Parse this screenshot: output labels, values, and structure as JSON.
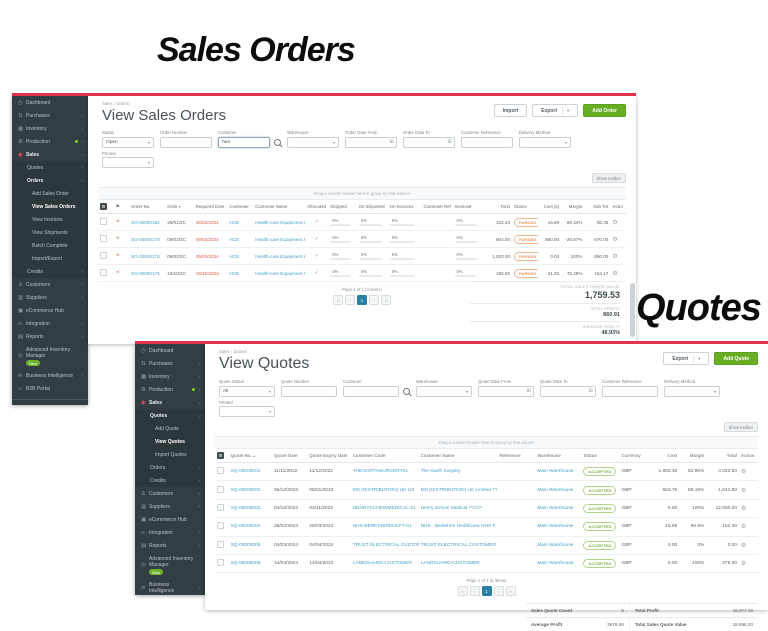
{
  "annotations": {
    "sales_orders_label": "Sales Orders",
    "quotes_label": "Quotes"
  },
  "icons": {
    "caret_down": "▾",
    "calendar": "⊞",
    "gear": "⚙",
    "check": "✓",
    "flag": "⚑"
  },
  "colors": {
    "accent_red": "#e23449",
    "accent_green": "#68ae25",
    "link_blue": "#459fc6",
    "badge_orange": "#ef9052",
    "badge_green": "#79b13e",
    "sidebar_bg": "#333e43"
  },
  "sales_orders_window": {
    "breadcrumb": "Sales › Orders",
    "title": "View Sales Orders",
    "buttons": {
      "import": "Import",
      "export": "Export",
      "add": "Add Order"
    },
    "show_toolbar": "Show toolbar",
    "drag_hint": "Drag a column header here to group by that column",
    "sidebar_items": [
      {
        "label": "Dashboard",
        "icon": "dashboard-icon",
        "glyph": "◷",
        "level": 0
      },
      {
        "label": "Purchases",
        "icon": "purchases-icon",
        "glyph": "⇅",
        "level": 0,
        "chevron": ">"
      },
      {
        "label": "Inventory",
        "icon": "inventory-icon",
        "glyph": "▦",
        "level": 0,
        "chevron": ">"
      },
      {
        "label": "Production",
        "icon": "production-icon",
        "glyph": "⚙",
        "level": 0,
        "chevron": ">",
        "dot": true
      },
      {
        "label": "Sales",
        "icon": "sales-icon",
        "glyph": "◉",
        "level": 0,
        "chevron": "v",
        "red": true,
        "bold": true
      },
      {
        "label": "Quotes",
        "level": 1,
        "chevron": ">"
      },
      {
        "label": "Orders",
        "level": 1,
        "chevron": "v",
        "bold": true
      },
      {
        "label": "Add Sales Order",
        "level": 2
      },
      {
        "label": "View Sales Orders",
        "level": 2,
        "active": true
      },
      {
        "label": "View Invoices",
        "level": 2
      },
      {
        "label": "View Shipments",
        "level": 2
      },
      {
        "label": "Batch Complete",
        "level": 2
      },
      {
        "label": "Import/Export",
        "level": 2
      },
      {
        "label": "Credits",
        "level": 1,
        "chevron": ">"
      },
      {
        "label": "Customers",
        "icon": "customers-icon",
        "glyph": "♙",
        "level": 0,
        "chevron": ">"
      },
      {
        "label": "Suppliers",
        "icon": "suppliers-icon",
        "glyph": "▥",
        "level": 0,
        "chevron": ">"
      },
      {
        "label": "eCommerce Hub",
        "icon": "ecommerce-hub-icon",
        "glyph": "▣",
        "level": 0
      },
      {
        "label": "Integration",
        "icon": "integration-icon",
        "glyph": "∞",
        "level": 0,
        "chevron": ">"
      },
      {
        "label": "Reports",
        "icon": "reports-icon",
        "glyph": "▤",
        "level": 0,
        "chevron": ">"
      },
      {
        "label": "Advanced Inventory Manager",
        "icon": "aim-icon",
        "glyph": "◎",
        "level": 0,
        "badge": "New"
      },
      {
        "label": "Business Intelligence",
        "icon": "business-intelligence-icon",
        "glyph": "≋",
        "level": 0,
        "chevron": ">"
      },
      {
        "label": "B2B Portal",
        "icon": "b2b-portal-icon",
        "glyph": "⌂",
        "level": 0
      },
      {
        "label": "Collapse Menu",
        "icon": "collapse-menu-icon",
        "glyph": "‹",
        "level": 0,
        "divider": true
      }
    ],
    "filters_row1": [
      {
        "label": "Status",
        "type": "select",
        "value": "Open"
      },
      {
        "label": "Order Number",
        "type": "text",
        "value": ""
      },
      {
        "label": "Customer",
        "type": "search",
        "value": "hea",
        "focused": true
      },
      {
        "label": "Warehouse",
        "type": "select",
        "value": ""
      },
      {
        "label": "Order Date From",
        "type": "date",
        "value": ""
      },
      {
        "label": "Order Date To",
        "type": "date",
        "value": ""
      },
      {
        "label": "Customer Reference",
        "type": "text",
        "value": ""
      },
      {
        "label": "Delivery Method",
        "type": "select",
        "value": ""
      }
    ],
    "filters_row2": [
      {
        "label": "Printed",
        "type": "select",
        "value": ""
      }
    ],
    "table": {
      "columns": [
        {
          "key": "sel",
          "label": "",
          "type": "colgear",
          "w": "3%"
        },
        {
          "key": "flag",
          "label": "",
          "type": "flagcol",
          "w": "3%"
        },
        {
          "key": "order_no",
          "label": "Order No.",
          "type": "link",
          "w": "7%"
        },
        {
          "key": "order_date",
          "label": "Orde",
          "sort": "▼",
          "type": "text",
          "w": "5.5%"
        },
        {
          "key": "required_date",
          "label": "Required Date",
          "type": "reddate",
          "w": "6.5%"
        },
        {
          "key": "customer",
          "label": "Customer",
          "type": "link",
          "w": "5%"
        },
        {
          "key": "customer_name",
          "label": "Customer Name",
          "type": "link",
          "w": "10%"
        },
        {
          "key": "allocated",
          "label": "Allocated",
          "type": "check",
          "align": "center",
          "w": "4.5%"
        },
        {
          "key": "shipped",
          "label": "Shipped",
          "type": "progress",
          "w": "5.5%"
        },
        {
          "key": "on_shipment",
          "label": "On Shipment",
          "type": "progress",
          "w": "6%"
        },
        {
          "key": "on_invoices",
          "label": "On Invoices",
          "type": "progress",
          "w": "6.5%"
        },
        {
          "key": "customer_ref",
          "label": "Customer Ref",
          "type": "text",
          "w": "6%"
        },
        {
          "key": "invoiced",
          "label": "Invoiced",
          "type": "progress",
          "w": "6%"
        },
        {
          "key": "total",
          "label": "Total",
          "type": "num",
          "w": "5.5%"
        },
        {
          "key": "status",
          "label": "Status",
          "type": "badge",
          "w": "5%"
        },
        {
          "key": "cost",
          "label": "Cost (£)",
          "type": "num",
          "w": "4.5%"
        },
        {
          "key": "margin",
          "label": "Margin",
          "type": "num",
          "w": "4.5%"
        },
        {
          "key": "sub_total",
          "label": "Sub Tot",
          "type": "num",
          "w": "5%"
        },
        {
          "key": "actions",
          "label": "Actio",
          "type": "gear",
          "w": "3%"
        }
      ],
      "rows": [
        {
          "order_no": "SO-00000182",
          "order_date": "26/02/2C",
          "required_date": "26/02/2024",
          "customer": "HCE",
          "customer_name": "Health-care Equipment & Sup",
          "allocated": true,
          "shipped": "0%",
          "on_shipment": "0%",
          "on_invoices": "0%",
          "customer_ref": "",
          "invoiced": "0%",
          "total": "102.43",
          "status": "PARKED",
          "cost": "16.69",
          "margin": "80.44%",
          "sub_total": "85.36"
        },
        {
          "order_no": "SO-00000179",
          "order_date": "09/02/2C",
          "required_date": "09/02/2024",
          "customer": "HCE",
          "customer_name": "Health-care Equipment & Sup",
          "allocated": true,
          "shipped": "0%",
          "on_shipment": "0%",
          "on_invoices": "0%",
          "customer_ref": "",
          "invoiced": "0%",
          "total": "804.00",
          "status": "PARKED",
          "cost": "850.00",
          "margin": "-26.87%",
          "sub_total": "670.00"
        },
        {
          "order_no": "SO-00000178",
          "order_date": "09/02/2C",
          "required_date": "09/02/2024",
          "customer": "HCE",
          "customer_name": "Health-care Equipment & Sup",
          "allocated": true,
          "shipped": "0%",
          "on_shipment": "0%",
          "on_invoices": "0%",
          "customer_ref": "",
          "invoiced": "0%",
          "total": "1,020.00",
          "status": "PARKED",
          "cost": "0.00",
          "margin": "100%",
          "sub_total": "850.00"
        },
        {
          "order_no": "SO-00000175",
          "order_date": "18/10/2C",
          "required_date": "18/10/2023",
          "customer": "HCE",
          "customer_name": "Health-care Equipment & Sup",
          "allocated": true,
          "shipped": "0%",
          "on_shipment": "0%",
          "on_invoices": "0%",
          "customer_ref": "",
          "invoiced": "0%",
          "total": "185.00",
          "status": "PARKED",
          "cost": "31.93",
          "margin": "79.29%",
          "sub_total": "154.17"
        }
      ]
    },
    "pagination": {
      "label": "Page 1 of 1 (4 items)",
      "buttons": [
        "«",
        "‹",
        "1",
        "›",
        "»"
      ],
      "active": "1"
    },
    "totals": [
      {
        "label": "TOTAL SALES ORDER VALUE",
        "value": "1,759.53",
        "big": true
      },
      {
        "label": "TOTAL PROFIT",
        "value": "860.91"
      },
      {
        "label": "AVERAGE PROFIT",
        "value": "48.93%"
      }
    ]
  },
  "quotes_window": {
    "breadcrumb": "Sales › Quotes",
    "title": "View Quotes",
    "buttons": {
      "export": "Export",
      "add": "Add Quote"
    },
    "show_toolbar": "Show toolbar",
    "drag_hint": "Drag a column header here to group by that column",
    "sidebar_items": [
      {
        "label": "Dashboard",
        "icon": "dashboard-icon",
        "glyph": "◷",
        "level": 0
      },
      {
        "label": "Purchases",
        "icon": "purchases-icon",
        "glyph": "⇅",
        "level": 0,
        "chevron": ">"
      },
      {
        "label": "Inventory",
        "icon": "inventory-icon",
        "glyph": "▦",
        "level": 0,
        "chevron": ">"
      },
      {
        "label": "Production",
        "icon": "production-icon",
        "glyph": "⚙",
        "level": 0,
        "chevron": ">",
        "dot": true
      },
      {
        "label": "Sales",
        "icon": "sales-icon",
        "glyph": "◉",
        "level": 0,
        "chevron": "v",
        "red": true,
        "bold": true
      },
      {
        "label": "Quotes",
        "level": 1,
        "chevron": "v",
        "bold": true
      },
      {
        "label": "Add Quote",
        "level": 2
      },
      {
        "label": "View Quotes",
        "level": 2,
        "active": true
      },
      {
        "label": "Import Quotes",
        "level": 2
      },
      {
        "label": "Orders",
        "level": 1,
        "chevron": ">"
      },
      {
        "label": "Credits",
        "level": 1,
        "chevron": ">"
      },
      {
        "label": "Customers",
        "icon": "customers-icon",
        "glyph": "♙",
        "level": 0,
        "chevron": ">"
      },
      {
        "label": "Suppliers",
        "icon": "suppliers-icon",
        "glyph": "▥",
        "level": 0,
        "chevron": ">"
      },
      {
        "label": "eCommerce Hub",
        "icon": "ecommerce-hub-icon",
        "glyph": "▣",
        "level": 0
      },
      {
        "label": "Integration",
        "icon": "integration-icon",
        "glyph": "∞",
        "level": 0,
        "chevron": ">"
      },
      {
        "label": "Reports",
        "icon": "reports-icon",
        "glyph": "▤",
        "level": 0,
        "chevron": ">"
      },
      {
        "label": "Advanced Inventory Manager",
        "icon": "aim-icon",
        "glyph": "◎",
        "level": 0,
        "badge": "New"
      },
      {
        "label": "Business Intelligence",
        "icon": "business-intelligence-icon",
        "glyph": "≋",
        "level": 0,
        "chevron": ">"
      },
      {
        "label": "B2B Portal",
        "icon": "b2b-portal-icon",
        "glyph": "⌂",
        "level": 0
      }
    ],
    "filters_row1": [
      {
        "label": "Quote Status",
        "type": "select",
        "value": "All"
      },
      {
        "label": "Quote Number",
        "type": "text",
        "value": ""
      },
      {
        "label": "Customer",
        "type": "search",
        "value": ""
      },
      {
        "label": "Warehouse",
        "type": "select",
        "value": ""
      },
      {
        "label": "Quote Date From",
        "type": "date",
        "value": ""
      },
      {
        "label": "Quote Date To",
        "type": "date",
        "value": ""
      },
      {
        "label": "Customer Reference",
        "type": "text",
        "value": ""
      },
      {
        "label": "Delivery Method",
        "type": "select",
        "value": ""
      }
    ],
    "filters_row2": [
      {
        "label": "Printed",
        "type": "select",
        "value": ""
      }
    ],
    "table": {
      "columns": [
        {
          "key": "sel",
          "label": "",
          "type": "colgear",
          "w": "2.5%"
        },
        {
          "key": "quote_no",
          "label": "Quote No.",
          "sort": "▲",
          "type": "link",
          "w": "8%"
        },
        {
          "key": "quote_date",
          "label": "Quote Date",
          "type": "text",
          "w": "6.5%"
        },
        {
          "key": "expiry",
          "label": "Quote Expiry Date",
          "type": "text",
          "w": "8%"
        },
        {
          "key": "customer_code",
          "label": "Customer Code",
          "type": "link",
          "w": "12.5%"
        },
        {
          "key": "customer_name",
          "label": "Customer Name",
          "type": "link",
          "w": "14.5%"
        },
        {
          "key": "reference",
          "label": "Reference",
          "type": "text",
          "w": "7%"
        },
        {
          "key": "warehouse",
          "label": "Warehouse",
          "type": "link",
          "w": "8.5%"
        },
        {
          "key": "status",
          "label": "Status",
          "type": "badge-green",
          "w": "7%"
        },
        {
          "key": "currency",
          "label": "Currency",
          "type": "text",
          "w": "5.5%"
        },
        {
          "key": "cost",
          "label": "Cost",
          "type": "num",
          "w": "5.5%"
        },
        {
          "key": "margin",
          "label": "Margin",
          "type": "num",
          "w": "5%"
        },
        {
          "key": "total",
          "label": "Total",
          "type": "num",
          "w": "6%"
        },
        {
          "key": "action",
          "label": "Action",
          "type": "gear",
          "w": "3.5%"
        }
      ],
      "rows": [
        {
          "quote_no": "SQ-00000001",
          "quote_date": "11/11/2022",
          "expiry": "11/12/2022",
          "customer_code": "THEGARTHSURGERY01",
          "customer_name": "The Garth Surgery",
          "reference": "",
          "warehouse": "Main Warehouse",
          "status": "ACCEPTED",
          "currency": "GBP",
          "cost": "1,893.30",
          "margin": "52.95%",
          "total": "4,023.90"
        },
        {
          "quote_no": "SQ-00000002",
          "quote_date": "06/12/2022",
          "expiry": "06/01/2023",
          "customer_code": "MS (DISTRIBUTION) UK Ltd",
          "customer_name": "MS (DISTRIBUTION) UK Limited **I",
          "reference": "",
          "warehouse": "Main Warehouse",
          "status": "ACCEPTED",
          "currency": "GBP",
          "cost": "663.75",
          "margin": "59.15%",
          "total": "1,644.90"
        },
        {
          "quote_no": "SQ-00000003",
          "quote_date": "03/10/2023",
          "expiry": "03/11/2023",
          "customer_code": "HENRYSCHEINMEDICAL-01",
          "customer_name": "Henry Schein Medical **CA**",
          "reference": "",
          "warehouse": "Main Warehouse",
          "status": "ACCEPTED",
          "currency": "GBP",
          "cost": "0.00",
          "margin": "100%",
          "total": "12,500.00"
        },
        {
          "quote_no": "SQ-00000004",
          "quote_date": "26/02/2024",
          "expiry": "26/03/2024",
          "customer_code": "NHS-BERKSHIREHCFT-01",
          "customer_name": "NHS - Berkshire Healthcare NHS F",
          "reference": "",
          "warehouse": "Main Warehouse",
          "status": "ACCEPTED",
          "currency": "GBP",
          "cost": "16.69",
          "margin": "86.9%",
          "total": "152.40"
        },
        {
          "quote_no": "SQ-00000005",
          "quote_date": "04/03/2024",
          "expiry": "04/04/2024",
          "customer_code": "TRUST ELECTRICAL CUSTOME",
          "customer_name": "TRUST ELECTRICAL CUSTOMER",
          "reference": "",
          "warehouse": "Main Warehouse",
          "status": "ACCEPTED",
          "currency": "GBP",
          "cost": "0.00",
          "margin": "0%",
          "total": "0.00"
        },
        {
          "quote_no": "SQ-00000006",
          "quote_date": "14/03/2024",
          "expiry": "14/04/2024",
          "customer_code": "LANDGUARD-CUSTOMER",
          "customer_name": "LANDGUARD-CUSTOMER",
          "reference": "",
          "warehouse": "Main Warehouse",
          "status": "ACCEPTED",
          "currency": "GBP",
          "cost": "0.00",
          "margin": "100%",
          "total": "375.00"
        }
      ]
    },
    "pagination": {
      "label": "Page 1 of 1 (6 items)",
      "buttons": [
        "«",
        "‹",
        "1",
        "›",
        "»"
      ],
      "active": "1"
    },
    "summary_rows": [
      [
        {
          "label": "Sales Quote Count",
          "value": "6"
        },
        {
          "label": "Total Profit",
          "value": "16,077.46"
        }
      ],
      [
        {
          "label": "Average Profit",
          "value": "2679.58"
        },
        {
          "label": "Total Sales Quote Value",
          "value": "18,696.20"
        }
      ]
    ]
  }
}
